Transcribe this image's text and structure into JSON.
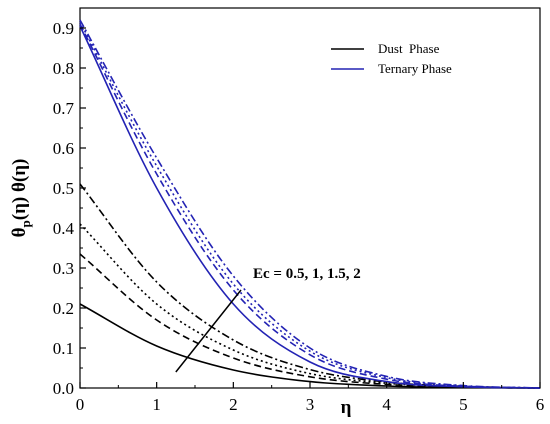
{
  "chart_data": {
    "type": "line",
    "title": "",
    "xlabel": "η",
    "ylabel": "θp(η) θ(η)",
    "xlim": [
      0,
      6
    ],
    "ylim": [
      0,
      0.95
    ],
    "xticks": [
      "0",
      "1",
      "2",
      "3",
      "4",
      "5",
      "6"
    ],
    "yticks": [
      "0.0",
      "0.1",
      "0.2",
      "0.3",
      "0.4",
      "0.5",
      "0.6",
      "0.7",
      "0.8",
      "0.9"
    ],
    "grid": false,
    "legend": {
      "position": "top-right",
      "entries": [
        {
          "label": "Dust  Phase",
          "color": "#000000"
        },
        {
          "label": "Ternary Phase",
          "color": "#2323b4"
        }
      ]
    },
    "annotation": {
      "text": "Ec = 0.5, 1, 1.5, 2",
      "arrow_from": [
        1.25,
        0.04
      ],
      "arrow_to": [
        2.1,
        0.245
      ]
    },
    "series": [
      {
        "phase": "Dust Phase",
        "Ec": 0.5,
        "style": "solid",
        "color": "#000000",
        "x": [
          0,
          1,
          2,
          3,
          4,
          5,
          6
        ],
        "y": [
          0.21,
          0.105,
          0.045,
          0.016,
          0.005,
          0.001,
          0.0
        ]
      },
      {
        "phase": "Dust Phase",
        "Ec": 1,
        "style": "dash",
        "color": "#000000",
        "x": [
          0,
          1,
          2,
          3,
          4,
          5,
          6
        ],
        "y": [
          0.335,
          0.17,
          0.075,
          0.028,
          0.009,
          0.002,
          0.0
        ]
      },
      {
        "phase": "Dust Phase",
        "Ec": 1.5,
        "style": "dot",
        "color": "#000000",
        "x": [
          0,
          1,
          2,
          3,
          4,
          5,
          6
        ],
        "y": [
          0.41,
          0.21,
          0.095,
          0.036,
          0.012,
          0.003,
          0.0
        ]
      },
      {
        "phase": "Dust Phase",
        "Ec": 2,
        "style": "dashdot",
        "color": "#000000",
        "x": [
          0,
          1,
          2,
          3,
          4,
          5,
          6
        ],
        "y": [
          0.51,
          0.265,
          0.12,
          0.046,
          0.015,
          0.004,
          0.0
        ]
      },
      {
        "phase": "Ternary Phase",
        "Ec": 0.5,
        "style": "solid",
        "color": "#2323b4",
        "x": [
          0,
          1,
          2,
          3,
          4,
          5,
          6
        ],
        "y": [
          0.905,
          0.5,
          0.21,
          0.065,
          0.016,
          0.003,
          0.0
        ]
      },
      {
        "phase": "Ternary Phase",
        "Ec": 1,
        "style": "dash",
        "color": "#2323b4",
        "x": [
          0,
          1,
          2,
          3,
          4,
          5,
          6
        ],
        "y": [
          0.91,
          0.535,
          0.245,
          0.083,
          0.022,
          0.004,
          0.0
        ]
      },
      {
        "phase": "Ternary Phase",
        "Ec": 1.5,
        "style": "dot",
        "color": "#2323b4",
        "x": [
          0,
          1,
          2,
          3,
          4,
          5,
          6
        ],
        "y": [
          0.915,
          0.555,
          0.26,
          0.092,
          0.026,
          0.005,
          0.0
        ]
      },
      {
        "phase": "Ternary Phase",
        "Ec": 2,
        "style": "dashdot",
        "color": "#2323b4",
        "x": [
          0,
          1,
          2,
          3,
          4,
          5,
          6
        ],
        "y": [
          0.92,
          0.575,
          0.28,
          0.1,
          0.029,
          0.006,
          0.0
        ]
      }
    ]
  }
}
